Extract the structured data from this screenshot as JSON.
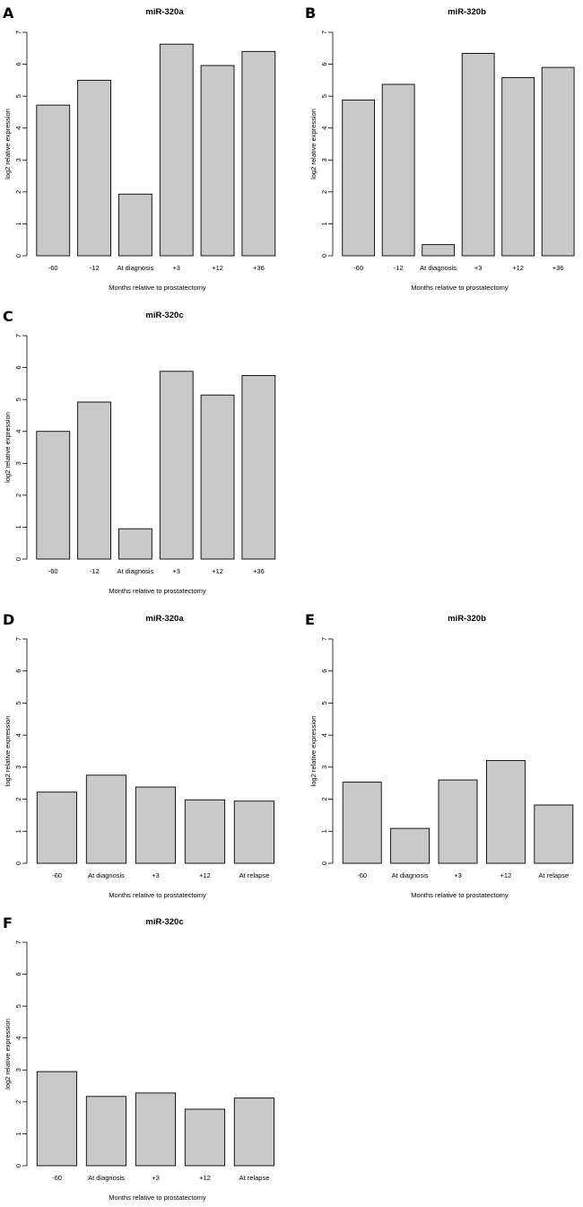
{
  "chart_data": [
    {
      "panel": "A",
      "type": "bar",
      "title": "miR-320a",
      "xlabel": "Months relative to prostatectomy",
      "ylabel": "log2 relative expression",
      "ylim": [
        0,
        7
      ],
      "yticks": [
        "0",
        "1",
        "2",
        "3",
        "4",
        "5",
        "6",
        "7"
      ],
      "categories": [
        "-60",
        "-12",
        "At diagnosis",
        "+3",
        "+12",
        "+36"
      ],
      "values": [
        4.72,
        5.5,
        1.93,
        6.63,
        5.96,
        6.4
      ]
    },
    {
      "panel": "B",
      "type": "bar",
      "title": "miR-320b",
      "xlabel": "Months relative to prostatectomy",
      "ylabel": "log2 relative expression",
      "ylim": [
        0,
        7
      ],
      "yticks": [
        "0",
        "1",
        "2",
        "3",
        "4",
        "5",
        "6",
        "7"
      ],
      "categories": [
        "-60",
        "-12",
        "At diagnosis",
        "+3",
        "+12",
        "+36"
      ],
      "values": [
        4.88,
        5.37,
        0.35,
        6.34,
        5.58,
        5.9
      ]
    },
    {
      "panel": "C",
      "type": "bar",
      "title": "miR-320c",
      "xlabel": "Months relative to prostatectomy",
      "ylabel": "log2 relative expression",
      "ylim": [
        0,
        7
      ],
      "yticks": [
        "0",
        "1",
        "2",
        "3",
        "4",
        "5",
        "6",
        "7"
      ],
      "categories": [
        "-60",
        "-12",
        "At diagnosis",
        "+3",
        "+12",
        "+36"
      ],
      "values": [
        4.0,
        4.92,
        0.95,
        5.88,
        5.14,
        5.75
      ]
    },
    {
      "panel": "D",
      "type": "bar",
      "title": "miR-320a",
      "xlabel": "Months relative to prostatectomy",
      "ylabel": "log2 relative expression",
      "ylim": [
        0,
        7
      ],
      "yticks": [
        "0",
        "1",
        "2",
        "3",
        "4",
        "5",
        "6",
        "7"
      ],
      "categories": [
        "-60",
        "At diagnosis",
        "+3",
        "+12",
        "At relapse"
      ],
      "values": [
        2.22,
        2.75,
        2.38,
        1.98,
        1.94
      ]
    },
    {
      "panel": "E",
      "type": "bar",
      "title": "miR-320b",
      "xlabel": "Months relative to prostatectomy",
      "ylabel": "log2 relative expression",
      "ylim": [
        0,
        7
      ],
      "yticks": [
        "0",
        "1",
        "2",
        "3",
        "4",
        "5",
        "6",
        "7"
      ],
      "categories": [
        "-60",
        "At diagnosis",
        "+3",
        "+12",
        "At relapse"
      ],
      "values": [
        2.53,
        1.09,
        2.6,
        3.21,
        1.82
      ]
    },
    {
      "panel": "F",
      "type": "bar",
      "title": "miR-320c",
      "xlabel": "Months relative to prostatectomy",
      "ylabel": "log2 relative expression",
      "ylim": [
        0,
        7
      ],
      "yticks": [
        "0",
        "1",
        "2",
        "3",
        "4",
        "5",
        "6",
        "7"
      ],
      "categories": [
        "-60",
        "At diagnosis",
        "+3",
        "+12",
        "At relapse"
      ],
      "values": [
        2.95,
        2.17,
        2.28,
        1.77,
        2.12
      ]
    }
  ]
}
